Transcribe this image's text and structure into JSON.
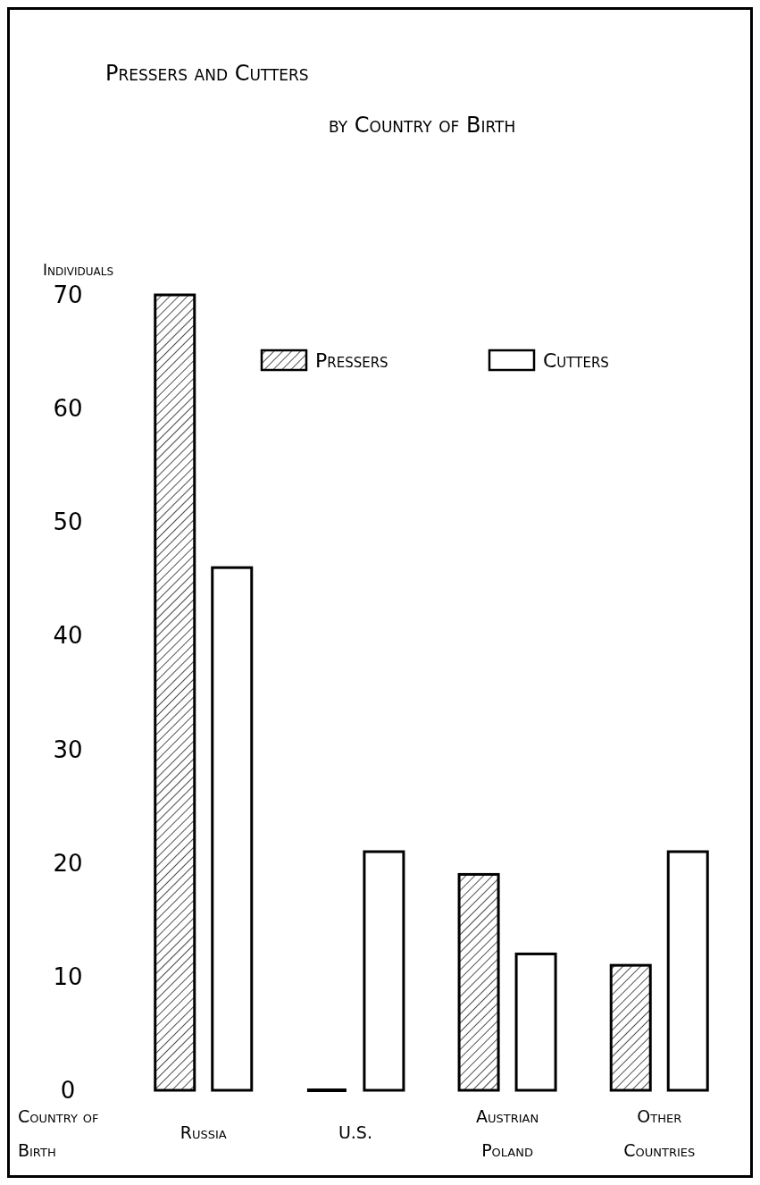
{
  "chart_data": {
    "type": "bar",
    "title": "Pressers and Cutters",
    "subtitle": "by Country of Birth",
    "ylabel": "Individuals",
    "xlabel": "Country of Birth",
    "categories": [
      "Russia",
      "U.S.",
      "Austrian Poland",
      "Other Countries"
    ],
    "series": [
      {
        "name": "Pressers",
        "color": "#000000",
        "values": [
          70,
          0,
          19,
          11
        ]
      },
      {
        "name": "Cutters",
        "color": "#ffffff",
        "values": [
          46,
          21,
          12,
          21
        ]
      }
    ],
    "ylim": [
      0,
      70
    ],
    "yticks": [
      0,
      10,
      20,
      30,
      40,
      50,
      60,
      70
    ],
    "grid": false,
    "legend": "top right"
  }
}
